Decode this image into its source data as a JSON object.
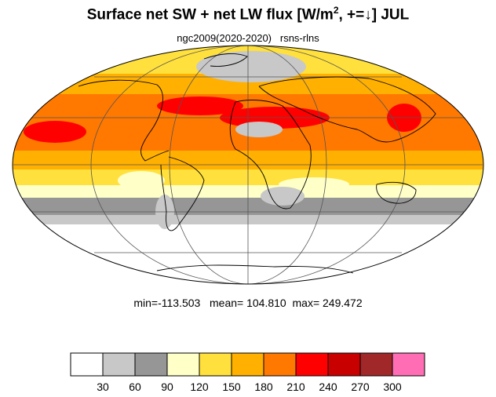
{
  "title": {
    "main": "Surface net SW + net LW flux [W/m",
    "exponent": "2",
    "rest": ", +=↓]  JUL"
  },
  "subtitle": {
    "run": "ngc2009(2020-2020)",
    "variable": "rsns-rlns"
  },
  "stats": {
    "min": "min=-113.503",
    "mean": "mean= 104.810",
    "max": "max= 249.472"
  },
  "map": {
    "projection": "mollweide",
    "graticule": true,
    "coastlines": true
  },
  "colorbar": {
    "colors": [
      "#ffffff",
      "#c8c8c8",
      "#969696",
      "#ffffc8",
      "#ffe03c",
      "#ffb000",
      "#ff7800",
      "#ff0000",
      "#c80000",
      "#a02828",
      "#ff6eb4"
    ],
    "labels": [
      "30",
      "60",
      "90",
      "120",
      "150",
      "180",
      "210",
      "240",
      "270",
      "300"
    ]
  }
}
